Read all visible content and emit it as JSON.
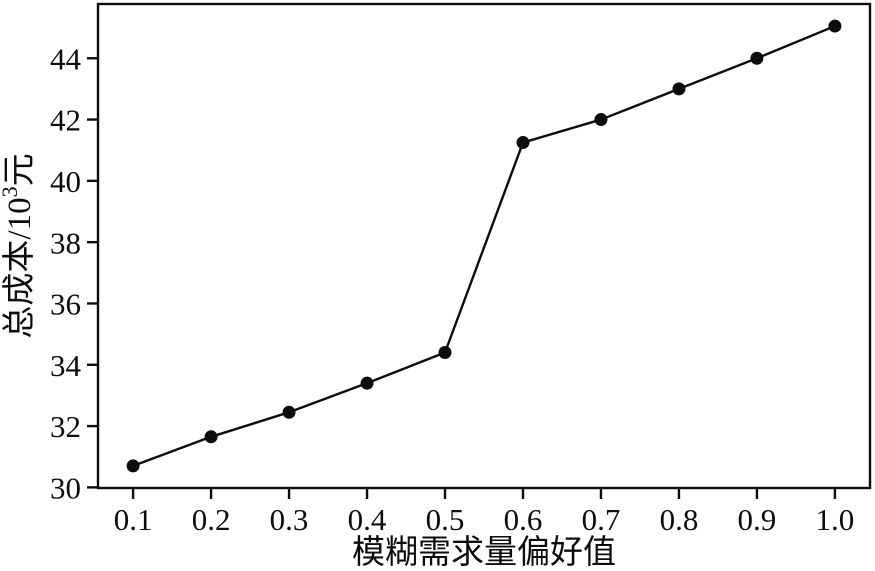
{
  "figure": {
    "background_color": "#ffffff",
    "line_color": "#0d0d0d",
    "marker_color": "#0d0d0d",
    "text_color": "#0d0d0d"
  },
  "chart_data": {
    "type": "line",
    "title": "",
    "xlabel": "模糊需求量偏好值",
    "ylabel": "总成本/10³元",
    "ylabel_parts": {
      "prefix": "总成本/10",
      "sup": "3",
      "suffix": "元"
    },
    "x": [
      0.1,
      0.2,
      0.3,
      0.4,
      0.5,
      0.6,
      0.7,
      0.8,
      0.9,
      1.0
    ],
    "series": [
      {
        "name": "总成本",
        "values": [
          30.7,
          31.65,
          32.45,
          33.4,
          34.4,
          41.25,
          42.0,
          43.0,
          44.0,
          45.05
        ]
      }
    ],
    "xticks": [
      0.1,
      0.2,
      0.3,
      0.4,
      0.5,
      0.6,
      0.7,
      0.8,
      0.9,
      1.0
    ],
    "xtick_labels": [
      "0.1",
      "0.2",
      "0.3",
      "0.4",
      "0.5",
      "0.6",
      "0.7",
      "0.8",
      "0.9",
      "1.0"
    ],
    "yticks": [
      30,
      32,
      34,
      36,
      38,
      40,
      42,
      44
    ],
    "ytick_labels": [
      "30",
      "32",
      "34",
      "36",
      "38",
      "40",
      "42",
      "44"
    ],
    "xlim": [
      0.055,
      1.045
    ],
    "ylim": [
      29.98,
      45.77
    ],
    "grid": false,
    "legend": "none",
    "marker": "circle",
    "line_style": "solid"
  }
}
